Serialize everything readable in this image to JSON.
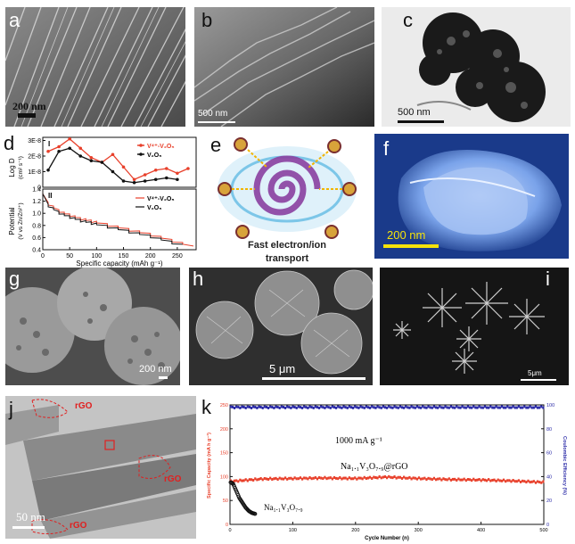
{
  "panels": {
    "a": {
      "label": "a",
      "scale": "200 nm"
    },
    "b": {
      "label": "b",
      "scale": "500 nm"
    },
    "c": {
      "label": "c",
      "scale": "500 nm"
    },
    "d": {
      "label": "d",
      "top": {
        "roman": "I",
        "ylabel": "Log D",
        "yunit": "(cm² s⁻¹)",
        "yticks": [
          "3E-8",
          "2E-8",
          "1E-8",
          "0"
        ],
        "legend": [
          "V⁴⁺-V₂O₅",
          "V₂O₅"
        ]
      },
      "bottom": {
        "roman": "II",
        "ylabel": "Potential",
        "yunit": "(V vs Zn/Zn²⁺)",
        "yticks": [
          "1.4",
          "1.2",
          "1.0",
          "0.8",
          "0.6",
          "0.4"
        ],
        "xticks": [
          "0",
          "50",
          "100",
          "150",
          "200",
          "250"
        ],
        "xlabel": "Specific capacity (mAh g⁻¹)",
        "legend": [
          "V⁴⁺-V₂O₅",
          "V₂O₅"
        ]
      }
    },
    "e": {
      "label": "e",
      "caption_line1": "Fast electron/ion",
      "caption_line2": "transport"
    },
    "f": {
      "label": "f",
      "scale": "200 nm"
    },
    "g": {
      "label": "g",
      "scale": "200 nm"
    },
    "h": {
      "label": "h",
      "scale": "5  μm"
    },
    "i": {
      "label": "i",
      "scale": "5μm"
    },
    "j": {
      "label": "j",
      "scale": "50 nm",
      "rgo1": "rGO",
      "rgo2": "rGO",
      "rgo3": "rGO"
    },
    "k": {
      "label": "k",
      "rate": "1000 mA g⁻¹",
      "series1": "Na₁.₁V₃O₇.₉@rGO",
      "series2": "Na₁.₁V₃O₇.₉",
      "ylabel_left": "Specific Capacity (mA h g⁻¹)",
      "ylabel_right": "Coulombic Efficiency (%)",
      "xlabel": "Cycle Number (n)",
      "yticks_left": [
        "0",
        "50",
        "100",
        "150",
        "200",
        "250"
      ],
      "yticks_right": [
        "0",
        "20",
        "40",
        "60",
        "80",
        "100"
      ],
      "xticks": [
        "0",
        "100",
        "200",
        "300",
        "400",
        "500"
      ]
    }
  },
  "colors": {
    "red": "#e8402b",
    "black": "#111111",
    "blue": "#2b2ba8",
    "pink": "#e45a63"
  },
  "chart_data": [
    {
      "type": "line",
      "title": "",
      "xlabel": "Specific capacity (mAh g⁻¹)",
      "ylabel": "Log D (cm² s⁻¹)",
      "ylim": [
        0,
        3.2e-08
      ],
      "x": [
        10,
        30,
        50,
        70,
        90,
        110,
        130,
        150,
        170,
        190,
        210,
        230,
        250,
        270
      ],
      "series": [
        {
          "name": "V⁴⁺-V₂O₅",
          "color": "#e8402b",
          "values": [
            2.3e-08,
            2.6e-08,
            3.1e-08,
            2.5e-08,
            1.9e-08,
            1.6e-08,
            2.1e-08,
            1.3e-08,
            5e-09,
            8e-09,
            1.1e-08,
            1.2e-08,
            9e-09,
            1.2e-08
          ]
        },
        {
          "name": "V₂O₅",
          "color": "#111111",
          "values": [
            1.1e-08,
            2.3e-08,
            2.5e-08,
            2e-08,
            1.7e-08,
            1.6e-08,
            1e-08,
            4e-09,
            3e-09,
            4e-09,
            5e-09,
            6e-09,
            5e-09,
            null
          ]
        }
      ]
    },
    {
      "type": "line",
      "title": "",
      "xlabel": "Specific capacity (mAh g⁻¹)",
      "ylabel": "Potential (V vs Zn/Zn²⁺)",
      "ylim": [
        0.4,
        1.4
      ],
      "x": [
        0,
        10,
        20,
        30,
        40,
        50,
        60,
        70,
        80,
        90,
        100,
        120,
        140,
        160,
        180,
        200,
        220,
        240,
        260,
        280
      ],
      "series": [
        {
          "name": "V⁴⁺-V₂O₅",
          "color": "#e8402b",
          "values": [
            1.35,
            1.18,
            1.12,
            1.06,
            1.02,
            0.99,
            0.96,
            0.93,
            0.91,
            0.89,
            0.87,
            0.83,
            0.79,
            0.75,
            0.71,
            0.67,
            0.62,
            0.57,
            0.52,
            0.46
          ]
        },
        {
          "name": "V₂O₅",
          "color": "#111111",
          "values": [
            1.35,
            1.15,
            1.09,
            1.03,
            0.99,
            0.96,
            0.93,
            0.9,
            0.88,
            0.86,
            0.84,
            0.8,
            0.76,
            0.72,
            0.68,
            0.64,
            0.59,
            0.54,
            0.49,
            null
          ]
        }
      ]
    },
    {
      "type": "scatter",
      "title": "",
      "xlabel": "Cycle Number (n)",
      "ylabel": "Specific Capacity (mA h g⁻¹)",
      "xlim": [
        0,
        500
      ],
      "ylim": [
        0,
        250
      ],
      "series": [
        {
          "name": "Na₁.₁V₃O₇.₉@rGO",
          "color": "#e8402b",
          "x": [
            1,
            50,
            100,
            150,
            200,
            250,
            300,
            350,
            400,
            450,
            500
          ],
          "values": [
            90,
            95,
            96,
            97,
            96,
            99,
            96,
            94,
            93,
            91,
            88
          ]
        },
        {
          "name": "Na₁.₁V₃O₇.₉",
          "color": "#111111",
          "x": [
            1,
            5,
            10,
            15,
            20,
            25,
            30,
            35,
            40
          ],
          "values": [
            88,
            85,
            70,
            55,
            45,
            35,
            28,
            24,
            22
          ]
        },
        {
          "name": "",
          "color": "#2b2ba8",
          "axis": "right",
          "x": [
            1,
            100,
            200,
            300,
            400,
            500
          ],
          "values": [
            98,
            98,
            98,
            98,
            98,
            97
          ]
        }
      ]
    }
  ]
}
